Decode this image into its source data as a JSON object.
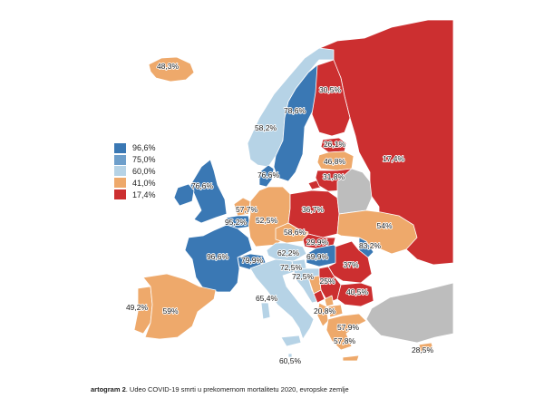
{
  "caption": {
    "prefix": "artogram 2",
    "text": ". Udeo COVID-19 smrti u prekomernom mortalitetu 2020, evropske zemlje"
  },
  "legend": [
    {
      "label": "96,6%",
      "color": "#3a78b4"
    },
    {
      "label": "75,0%",
      "color": "#6e9fcb"
    },
    {
      "label": "60,0%",
      "color": "#b6d3e6"
    },
    {
      "label": "41,0%",
      "color": "#eea96b"
    },
    {
      "label": "17,4%",
      "color": "#cc2f30"
    }
  ],
  "colors": {
    "blue": "#3a78b4",
    "light_blue": "#b6d3e6",
    "orange": "#eea96b",
    "red": "#cc2f30",
    "gray": "#bdbdbd"
  },
  "countries": [
    {
      "id": "russia",
      "value": "17,4%",
      "color_key": "red"
    },
    {
      "id": "iceland",
      "value": "48,3%",
      "color_key": "orange"
    },
    {
      "id": "norway",
      "value": "58,2%",
      "color_key": "light_blue"
    },
    {
      "id": "sweden",
      "value": "78,6%",
      "color_key": "blue"
    },
    {
      "id": "finland",
      "value": "30,5%",
      "color_key": "red"
    },
    {
      "id": "estonia",
      "value": "26,1%",
      "color_key": "red"
    },
    {
      "id": "latvia",
      "value": "46,8%",
      "color_key": "orange"
    },
    {
      "id": "lithuania",
      "value": "31,8%",
      "color_key": "red"
    },
    {
      "id": "denmark",
      "value": "76,6%",
      "color_key": "blue"
    },
    {
      "id": "uk",
      "value": "76,6%",
      "color_key": "blue"
    },
    {
      "id": "netherlands",
      "value": "57,7%",
      "color_key": "orange"
    },
    {
      "id": "belgium",
      "value": "95,2%",
      "color_key": "blue"
    },
    {
      "id": "germany",
      "value": "52,5%",
      "color_key": "orange"
    },
    {
      "id": "poland",
      "value": "36,7%",
      "color_key": "red"
    },
    {
      "id": "belarus",
      "value": "",
      "color_key": "gray"
    },
    {
      "id": "ukraine",
      "value": "54%",
      "color_key": "orange"
    },
    {
      "id": "czechia",
      "value": "58,6%",
      "color_key": "orange"
    },
    {
      "id": "slovakia",
      "value": "29,9%",
      "color_key": "red"
    },
    {
      "id": "austria",
      "value": "62,2%",
      "color_key": "light_blue"
    },
    {
      "id": "switzerland",
      "value": "79,9%",
      "color_key": "blue"
    },
    {
      "id": "france",
      "value": "96,6%",
      "color_key": "blue"
    },
    {
      "id": "hungary",
      "value": "69,9%",
      "color_key": "blue"
    },
    {
      "id": "moldova",
      "value": "83,2%",
      "color_key": "blue"
    },
    {
      "id": "slovenia",
      "value": "72,5%",
      "color_key": "light_blue"
    },
    {
      "id": "croatia",
      "value": "72,5%",
      "color_key": "light_blue"
    },
    {
      "id": "romania",
      "value": "37%",
      "color_key": "red"
    },
    {
      "id": "serbia",
      "value": "25%",
      "color_key": "red"
    },
    {
      "id": "bulgaria",
      "value": "40,5%",
      "color_key": "red"
    },
    {
      "id": "bosnia",
      "value": "",
      "color_key": "orange"
    },
    {
      "id": "montenegro",
      "value": "20,8%",
      "color_key": "red"
    },
    {
      "id": "albania",
      "value": "",
      "color_key": "orange"
    },
    {
      "id": "north_macedonia",
      "value": "57,9%",
      "color_key": "orange"
    },
    {
      "id": "greece",
      "value": "57,8%",
      "color_key": "orange"
    },
    {
      "id": "italy",
      "value": "65,4%",
      "color_key": "light_blue"
    },
    {
      "id": "portugal",
      "value": "49,2%",
      "color_key": "orange"
    },
    {
      "id": "spain",
      "value": "59%",
      "color_key": "orange"
    },
    {
      "id": "turkey",
      "value": "",
      "color_key": "gray"
    },
    {
      "id": "cyprus",
      "value": "28,5%",
      "color_key": "orange"
    },
    {
      "id": "malta",
      "value": "60,5%",
      "color_key": "light_blue"
    }
  ]
}
